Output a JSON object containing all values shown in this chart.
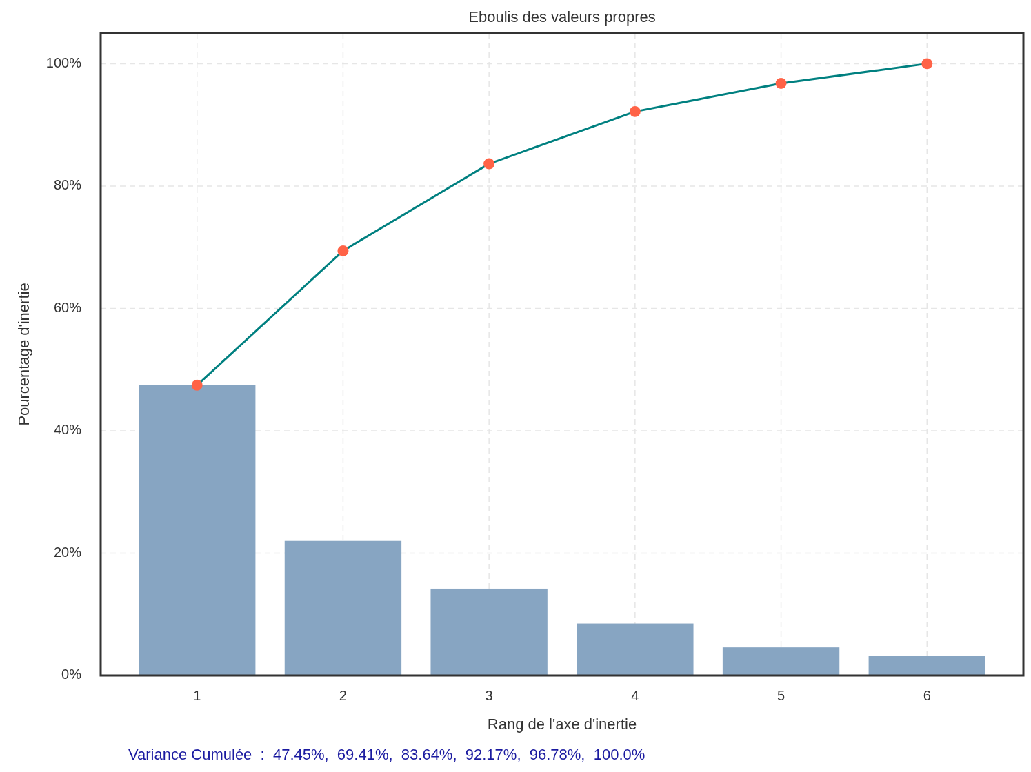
{
  "chart_data": {
    "type": "bar",
    "title": "Eboulis des valeurs propres",
    "xlabel": "Rang de l'axe d'inertie",
    "ylabel": "Pourcentage d'inertie",
    "categories": [
      "1",
      "2",
      "3",
      "4",
      "5",
      "6"
    ],
    "series": [
      {
        "color": "#87a5c2",
        "values": [
          47.5,
          22.0,
          14.2,
          8.5,
          4.6,
          3.2
        ]
      },
      {
        "type": "line",
        "color": "#008080",
        "colors": [
          "#ff6347",
          "#ff6347",
          "#ff6347",
          "#ff6347",
          "#ff6347",
          "#ff6347"
        ],
        "values": [
          47.45,
          69.41,
          83.64,
          92.17,
          96.78,
          100.0
        ]
      }
    ],
    "ylim": [
      0,
      105
    ],
    "yticks": [
      {
        "value": 0,
        "label": "0%"
      },
      {
        "value": 20,
        "label": "20%"
      },
      {
        "value": 40,
        "label": "40%"
      },
      {
        "value": 60,
        "label": "60%"
      },
      {
        "value": 80,
        "label": "80%"
      },
      {
        "value": 100,
        "label": "100%"
      }
    ],
    "grid": true,
    "marker": "circle",
    "line_style": "solid",
    "annotations": [
      "Variance Cumulée  :  47.45%,  69.41%,  83.64%,  92.17%,  96.78%,  100.0%"
    ]
  }
}
